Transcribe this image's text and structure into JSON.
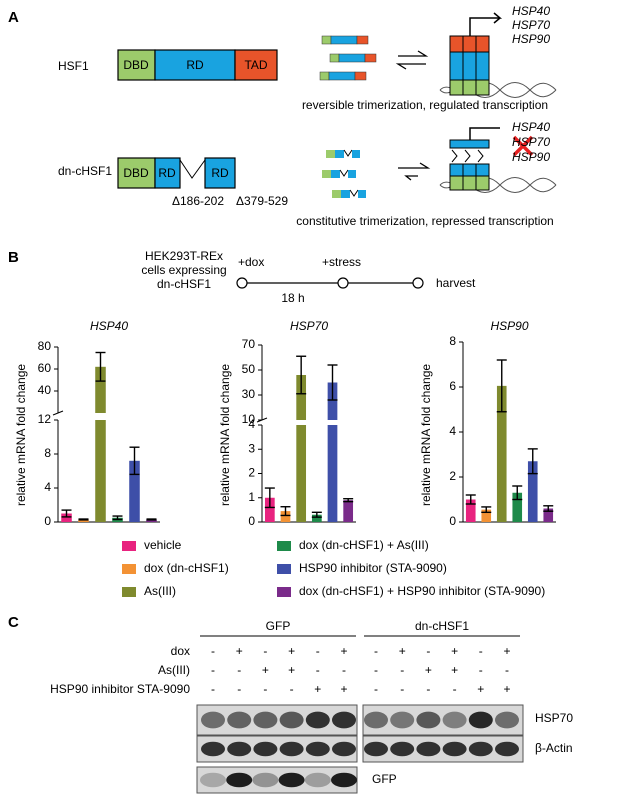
{
  "panel_a": {
    "label": "A",
    "hsf1": {
      "name": "HSF1",
      "domains": [
        "DBD",
        "RD",
        "TAD"
      ],
      "genes": [
        "HSP40",
        "HSP70",
        "HSP90"
      ],
      "caption": "reversible trimerization, regulated transcription"
    },
    "dn": {
      "name": "dn-cHSF1",
      "domains": [
        "DBD",
        "RD",
        "RD"
      ],
      "deletions": [
        "Δ186-202",
        "Δ379-529"
      ],
      "genes": [
        "HSP40",
        "HSP70",
        "HSP90"
      ],
      "caption": "constitutive trimerization, repressed transcription"
    }
  },
  "panel_b": {
    "label": "B",
    "timeline": {
      "cells": [
        "HEK293T-REx",
        "cells expressing",
        "dn-cHSF1"
      ],
      "steps": [
        "+dox",
        "+stress",
        "harvest"
      ],
      "duration": "18 h"
    },
    "legend": [
      {
        "name": "vehicle",
        "color": "#e8237f"
      },
      {
        "name": "dox (dn-cHSF1)",
        "color": "#f39234"
      },
      {
        "name": "As(III)",
        "color": "#7f8a2e"
      },
      {
        "name": "dox (dn-cHSF1) + As(III)",
        "color": "#1e8a4a"
      },
      {
        "name": "HSP90 inhibitor (STA-9090)",
        "color": "#3e4fa8"
      },
      {
        "name": "dox (dn-cHSF1) + HSP90 inhibitor (STA-9090)",
        "color": "#7a2b8a"
      }
    ]
  },
  "chart_data": [
    {
      "type": "bar",
      "title": "HSP40",
      "y_label": "relative mRNA fold change",
      "values": [
        1.0,
        0.3,
        62,
        0.5,
        7.2,
        0.3
      ],
      "errors": [
        0.4,
        0.05,
        13,
        0.2,
        1.6,
        0.05
      ],
      "y_segments": [
        {
          "ylim": [
            0,
            12
          ],
          "yticks": [
            0,
            4,
            8,
            12
          ]
        },
        {
          "ylim": [
            20,
            80
          ],
          "yticks": [
            40,
            60,
            80
          ]
        }
      ]
    },
    {
      "type": "bar",
      "title": "HSP70",
      "y_label": "relative mRNA fold change",
      "values": [
        1.0,
        0.45,
        46,
        0.3,
        40,
        0.9
      ],
      "errors": [
        0.4,
        0.18,
        15,
        0.1,
        14,
        0.06
      ],
      "y_segments": [
        {
          "ylim": [
            0,
            4
          ],
          "yticks": [
            0,
            1,
            2,
            3,
            4
          ]
        },
        {
          "ylim": [
            10,
            70
          ],
          "yticks": [
            10,
            30,
            50,
            70
          ]
        }
      ]
    },
    {
      "type": "bar",
      "title": "HSP90",
      "y_label": "relative mRNA fold change",
      "values": [
        1.0,
        0.55,
        6.05,
        1.3,
        2.7,
        0.6
      ],
      "errors": [
        0.2,
        0.12,
        1.15,
        0.3,
        0.55,
        0.12
      ],
      "y_segments": [
        {
          "ylim": [
            0,
            8
          ],
          "yticks": [
            0,
            2,
            4,
            6,
            8
          ]
        }
      ]
    }
  ],
  "panel_c": {
    "label": "C",
    "groups": [
      "GFP",
      "dn-cHSF1"
    ],
    "rows": [
      {
        "label": "dox",
        "cells": [
          "-",
          "+",
          "-",
          "+",
          "-",
          "+",
          "-",
          "+",
          "-",
          "+",
          "-",
          "+"
        ]
      },
      {
        "label": "As(III)",
        "cells": [
          "-",
          "-",
          "+",
          "+",
          "-",
          "-",
          "-",
          "-",
          "+",
          "+",
          "-",
          "-"
        ]
      },
      {
        "label": "HSP90 inhibitor STA-9090",
        "cells": [
          "-",
          "-",
          "-",
          "-",
          "+",
          "+",
          "-",
          "-",
          "-",
          "-",
          "+",
          "+"
        ]
      }
    ],
    "blots": [
      "HSP70",
      "β-Actin",
      "GFP"
    ]
  }
}
